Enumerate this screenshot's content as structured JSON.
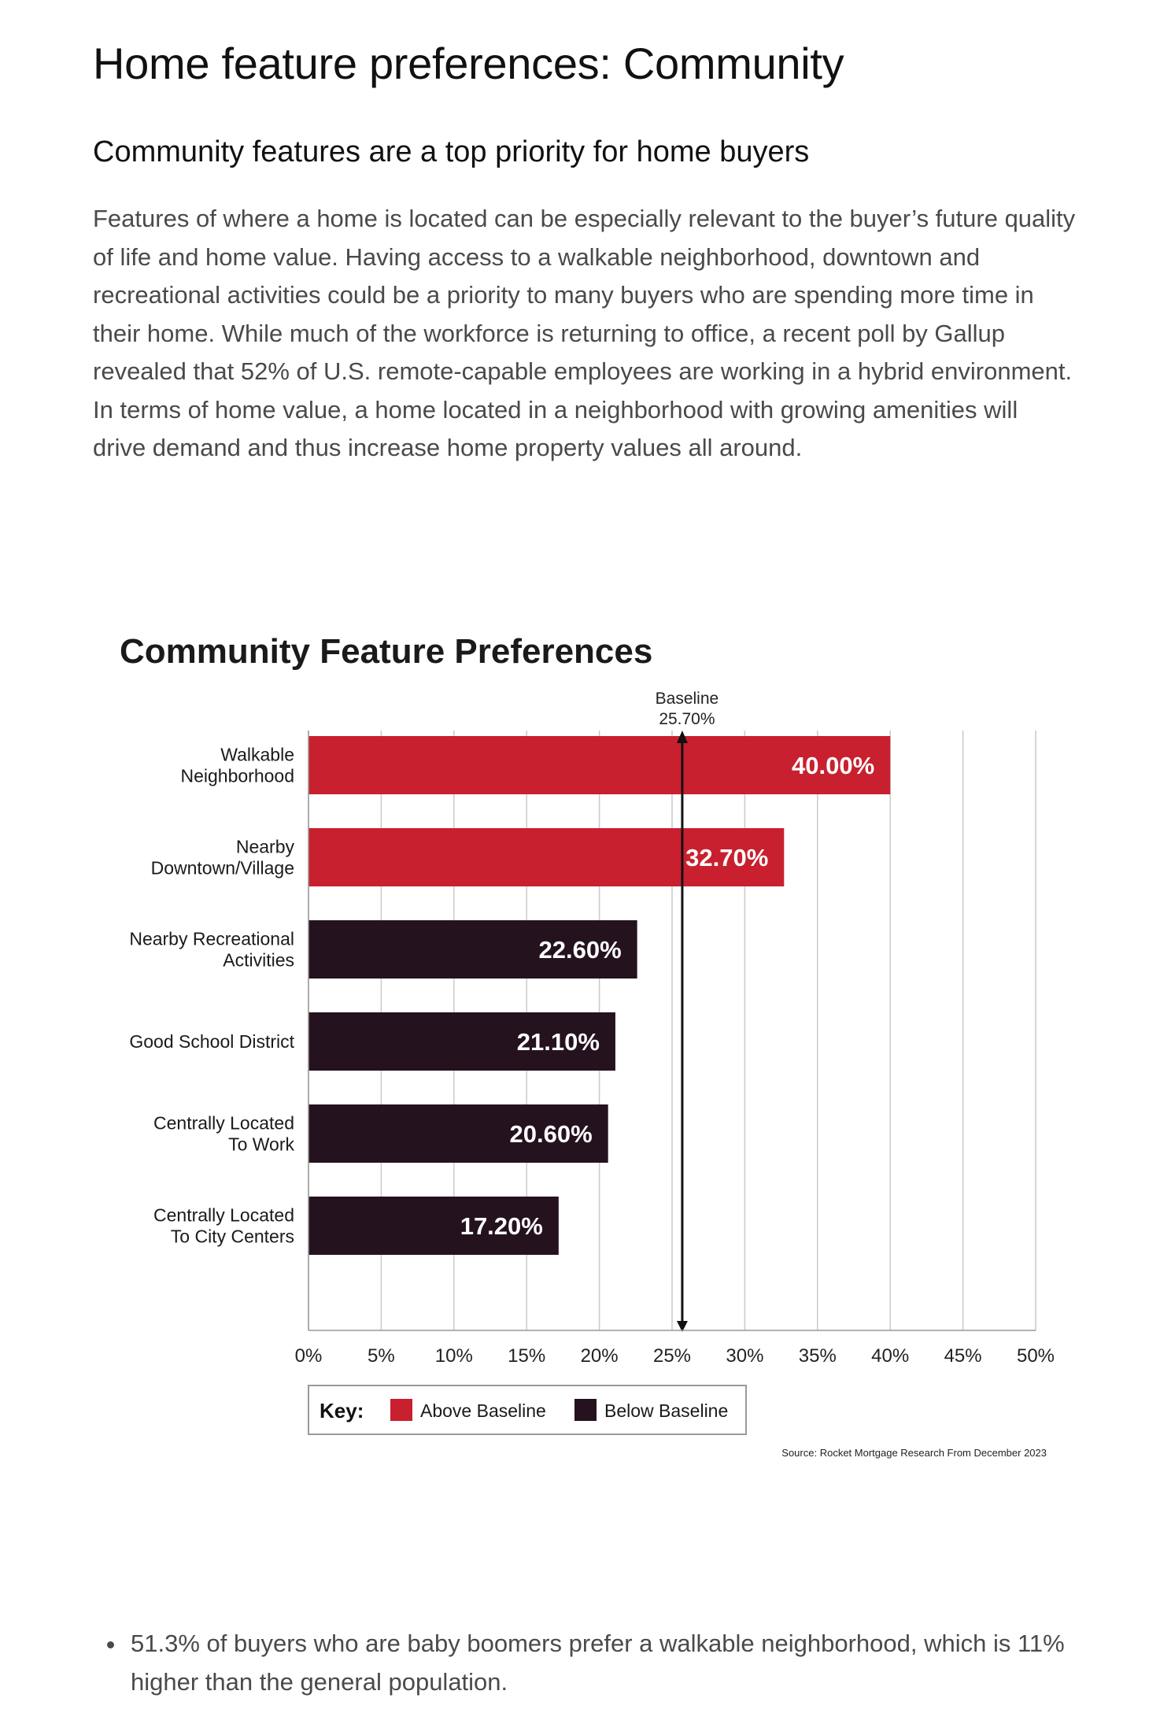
{
  "article": {
    "title": "Home feature preferences: Community",
    "subtitle": "Community features are a top priority for home buyers",
    "paragraph": "Features of where a home is located can be especially relevant to the buyer’s future quality of life and home value. Having access to a walkable neighborhood, downtown and recreational activities could be a priority to many buyers who are spending more time in their home. While much of the workforce is returning to office, a recent poll by Gallup revealed that 52% of U.S. remote-capable employees are working in a hybrid environment. In terms of home value, a home located in a neighborhood with growing amenities will drive demand and thus increase home property values all around.",
    "bullets": [
      "51.3% of buyers who are baby boomers prefer a walkable neighborhood, which is 11% higher than the general population."
    ]
  },
  "chart_data": {
    "type": "bar",
    "orientation": "horizontal",
    "title": "Community Feature Preferences",
    "categories": [
      [
        "Walkable",
        "Neighborhood"
      ],
      [
        "Nearby",
        "Downtown/Village"
      ],
      [
        "Nearby Recreational",
        "Activities"
      ],
      [
        "Good School District"
      ],
      [
        "Centrally Located",
        "To Work"
      ],
      [
        "Centrally Located",
        "To City Centers"
      ]
    ],
    "values": [
      40.0,
      32.7,
      22.6,
      21.1,
      20.6,
      17.2
    ],
    "value_labels": [
      "40.00%",
      "32.70%",
      "22.60%",
      "21.10%",
      "20.60%",
      "17.20%"
    ],
    "baseline": {
      "value": 25.7,
      "label_lines": [
        "Baseline",
        "25.70%"
      ]
    },
    "xlim": [
      0,
      50
    ],
    "xticks": [
      "0%",
      "5%",
      "10%",
      "15%",
      "20%",
      "25%",
      "30%",
      "35%",
      "40%",
      "45%",
      "50%"
    ],
    "grid": true,
    "legend": {
      "position": "bottom",
      "title": "Key:",
      "entries": [
        {
          "name": "Above Baseline",
          "color": "#c8202f"
        },
        {
          "name": "Below Baseline",
          "color": "#25121f"
        }
      ]
    },
    "source": "Source: Rocket Mortgage Research From December 2023",
    "colors": {
      "above": "#c8202f",
      "below": "#25121f",
      "grid": "#c9c9c9",
      "baseline": "#111111"
    }
  }
}
